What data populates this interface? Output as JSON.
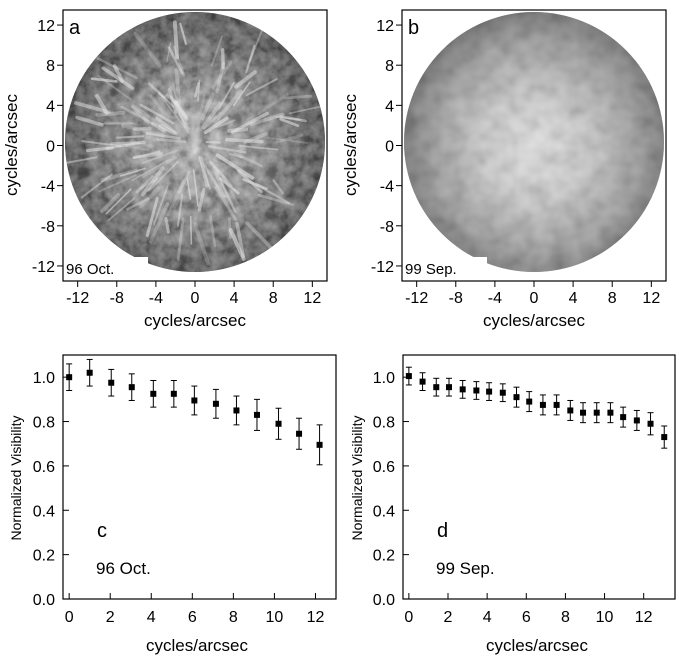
{
  "chart_data": [
    {
      "panel": "a",
      "type": "heatmap",
      "note": "96 Oct.",
      "xlabel": "cycles/arcsec",
      "ylabel": "cycles/arcsec",
      "xlim": [
        -13.5,
        13.5
      ],
      "ylim": [
        -13.5,
        13.5
      ],
      "xticks": [
        -12,
        -8,
        -4,
        0,
        4,
        8,
        12
      ],
      "yticks": [
        -12,
        -8,
        -4,
        0,
        4,
        8,
        12
      ],
      "description_style": "radial_streaks",
      "colormap": [
        "#0d0d0d",
        "#ffffff"
      ]
    },
    {
      "panel": "b",
      "type": "heatmap",
      "note": "99 Sep.",
      "xlabel": "cycles/arcsec",
      "ylabel": "cycles/arcsec",
      "xlim": [
        -13.5,
        13.5
      ],
      "ylim": [
        -13.5,
        13.5
      ],
      "xticks": [
        -12,
        -8,
        -4,
        0,
        4,
        8,
        12
      ],
      "yticks": [
        -12,
        -8,
        -4,
        0,
        4,
        8,
        12
      ],
      "description_style": "smooth_blob",
      "colormap": [
        "#2a2a2a",
        "#f5f5f5"
      ]
    },
    {
      "panel": "c",
      "type": "scatter",
      "note": "96 Oct.",
      "xlabel": "cycles/arcsec",
      "ylabel": "Normalized Visibility",
      "xlim": [
        -0.3,
        13.0
      ],
      "ylim": [
        0.0,
        1.1
      ],
      "xticks": [
        0,
        2,
        4,
        6,
        8,
        10,
        12
      ],
      "yticks": [
        0.0,
        0.2,
        0.4,
        0.6,
        0.8,
        1.0
      ],
      "x": [
        0.0,
        1.0,
        2.05,
        3.05,
        4.1,
        5.1,
        6.1,
        7.15,
        8.15,
        9.15,
        10.2,
        11.2,
        12.2
      ],
      "y": [
        1.0,
        1.02,
        0.975,
        0.955,
        0.925,
        0.925,
        0.895,
        0.88,
        0.85,
        0.83,
        0.79,
        0.745,
        0.695
      ],
      "err": [
        0.06,
        0.06,
        0.06,
        0.06,
        0.06,
        0.06,
        0.065,
        0.065,
        0.065,
        0.07,
        0.07,
        0.07,
        0.09
      ]
    },
    {
      "panel": "d",
      "type": "scatter",
      "note": "99 Sep.",
      "xlabel": "cycles/arcsec",
      "ylabel": "Normalized Visibility",
      "xlim": [
        -0.3,
        13.6
      ],
      "ylim": [
        0.0,
        1.1
      ],
      "xticks": [
        0,
        2,
        4,
        6,
        8,
        10,
        12
      ],
      "yticks": [
        0.0,
        0.2,
        0.4,
        0.6,
        0.8,
        1.0
      ],
      "x": [
        0.0,
        0.7,
        1.4,
        2.05,
        2.75,
        3.45,
        4.1,
        4.8,
        5.5,
        6.15,
        6.85,
        7.55,
        8.25,
        8.9,
        9.6,
        10.3,
        10.95,
        11.65,
        12.35,
        13.05
      ],
      "y": [
        1.005,
        0.98,
        0.955,
        0.955,
        0.945,
        0.94,
        0.935,
        0.93,
        0.91,
        0.89,
        0.875,
        0.875,
        0.85,
        0.84,
        0.84,
        0.84,
        0.82,
        0.805,
        0.79,
        0.73
      ],
      "err": [
        0.04,
        0.04,
        0.04,
        0.04,
        0.04,
        0.04,
        0.04,
        0.04,
        0.045,
        0.045,
        0.045,
        0.045,
        0.045,
        0.045,
        0.045,
        0.045,
        0.045,
        0.045,
        0.05,
        0.05
      ]
    }
  ]
}
